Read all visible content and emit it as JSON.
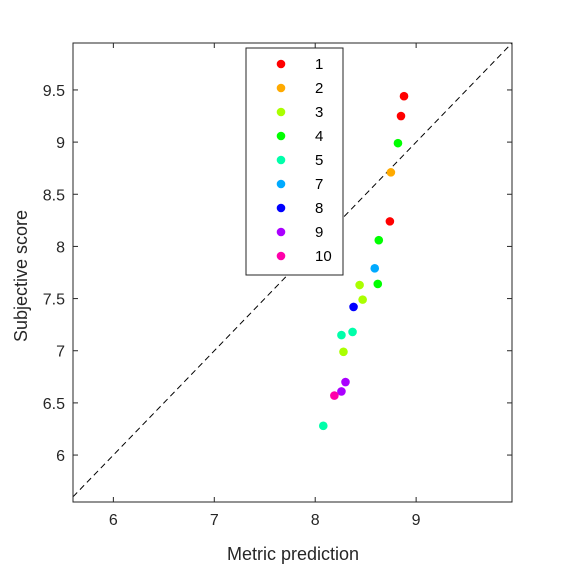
{
  "chart_data": {
    "type": "scatter",
    "xlabel": "Metric prediction",
    "ylabel": "Subjective score",
    "xlim": [
      5.6,
      9.95
    ],
    "ylim": [
      5.55,
      9.95
    ],
    "xticks": [
      6,
      7,
      8,
      9
    ],
    "yticks": [
      6,
      6.5,
      7,
      7.5,
      8,
      8.5,
      9,
      9.5
    ],
    "xtick_labels": [
      "6",
      "7",
      "8",
      "9"
    ],
    "ytick_labels": [
      "6",
      "6.5",
      "7",
      "7.5",
      "8",
      "8.5",
      "9",
      "9.5"
    ],
    "grid": false,
    "legend_position": "top-center",
    "reference_line": "y = x (dashed)",
    "series": [
      {
        "name": "1",
        "color": "#ff0000",
        "points": [
          [
            8.88,
            9.44
          ],
          [
            8.85,
            9.25
          ],
          [
            8.74,
            8.24
          ]
        ]
      },
      {
        "name": "2",
        "color": "#ffaa00",
        "points": [
          [
            8.75,
            8.71
          ]
        ]
      },
      {
        "name": "3",
        "color": "#aaff00",
        "points": [
          [
            8.44,
            7.63
          ],
          [
            8.47,
            7.49
          ],
          [
            8.28,
            6.99
          ]
        ]
      },
      {
        "name": "4",
        "color": "#00ff00",
        "points": [
          [
            8.82,
            8.99
          ],
          [
            8.63,
            8.06
          ],
          [
            8.62,
            7.64
          ]
        ]
      },
      {
        "name": "5",
        "color": "#00ffaa",
        "points": [
          [
            8.26,
            7.15
          ],
          [
            8.37,
            7.18
          ],
          [
            8.08,
            6.28
          ]
        ]
      },
      {
        "name": "7",
        "color": "#00aaff",
        "points": [
          [
            8.59,
            7.79
          ]
        ]
      },
      {
        "name": "8",
        "color": "#0000ff",
        "points": [
          [
            8.38,
            7.42
          ]
        ]
      },
      {
        "name": "9",
        "color": "#aa00ff",
        "points": [
          [
            8.3,
            6.7
          ],
          [
            8.26,
            6.61
          ]
        ]
      },
      {
        "name": "10",
        "color": "#ff00aa",
        "points": [
          [
            8.19,
            6.57
          ]
        ]
      }
    ]
  }
}
